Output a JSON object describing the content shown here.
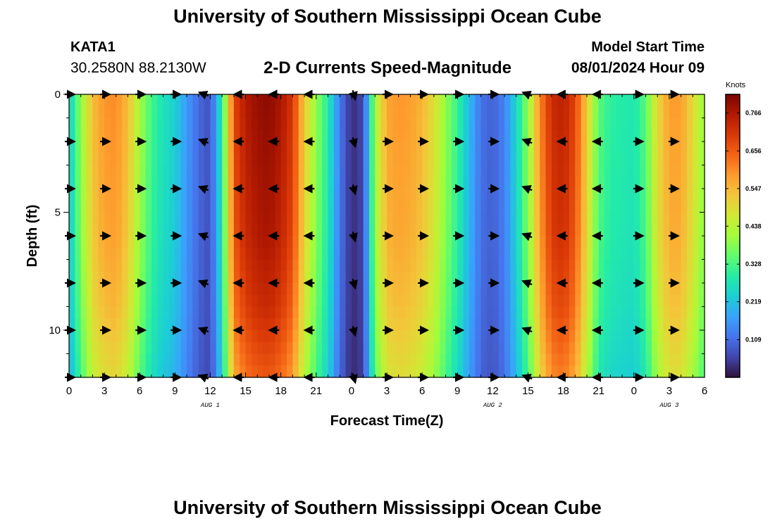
{
  "header": {
    "title": "University of Southern Mississippi Ocean Cube",
    "station_name": "KATA1",
    "station_coords": "30.2580N  88.2130W",
    "subtitle": "2-D Currents Speed-Magnitude",
    "start_label": "Model Start Time",
    "start_value": "08/01/2024 Hour 09"
  },
  "footer": {
    "title": "University of Southern Mississippi Ocean Cube"
  },
  "chart_data": {
    "type": "heatmap",
    "title": "2-D Currents Speed-Magnitude",
    "xlabel": "Forecast Time(Z)",
    "ylabel": "Depth (ft)",
    "x_range_hours": [
      0,
      54
    ],
    "x_ticks": [
      {
        "h": 0,
        "label": "0"
      },
      {
        "h": 3,
        "label": "3"
      },
      {
        "h": 6,
        "label": "6"
      },
      {
        "h": 9,
        "label": "9"
      },
      {
        "h": 12,
        "label": "12"
      },
      {
        "h": 15,
        "label": "15"
      },
      {
        "h": 18,
        "label": "18"
      },
      {
        "h": 21,
        "label": "21"
      },
      {
        "h": 24,
        "label": "0"
      },
      {
        "h": 27,
        "label": "3"
      },
      {
        "h": 30,
        "label": "6"
      },
      {
        "h": 33,
        "label": "9"
      },
      {
        "h": 36,
        "label": "12"
      },
      {
        "h": 39,
        "label": "15"
      },
      {
        "h": 42,
        "label": "18"
      },
      {
        "h": 45,
        "label": "21"
      },
      {
        "h": 48,
        "label": "0"
      },
      {
        "h": 51,
        "label": "3"
      },
      {
        "h": 54,
        "label": "6"
      }
    ],
    "date_labels": [
      {
        "h": 12,
        "label": "AUG 1"
      },
      {
        "h": 36,
        "label": "AUG 2"
      },
      {
        "h": 51,
        "label": "AUG 3"
      }
    ],
    "y_range_ft": [
      0,
      12
    ],
    "y_ticks": [
      {
        "v": 0,
        "label": "0"
      },
      {
        "v": 5,
        "label": "5"
      },
      {
        "v": 10,
        "label": "10"
      }
    ],
    "colorbar": {
      "units": "Knots",
      "min": 0,
      "max": 0.82,
      "tick_values": [
        0.109,
        0.219,
        0.328,
        0.438,
        0.547,
        0.656,
        0.766
      ],
      "tick_labels": [
        "0.109",
        "0.219",
        "0.328",
        "0.438",
        "0.547",
        "0.656",
        "0.766"
      ],
      "colors": [
        "#30123b",
        "#4145ab",
        "#4675ed",
        "#39a2fc",
        "#1bcfd4",
        "#24eca6",
        "#61fc6c",
        "#a4fc3b",
        "#d1e834",
        "#f3c63a",
        "#fe9b2d",
        "#f36315",
        "#d93806",
        "#b11901",
        "#7a0402"
      ]
    },
    "speed_profile": [
      {
        "h": 0,
        "speed": 0.22
      },
      {
        "h": 1,
        "speed": 0.38
      },
      {
        "h": 2,
        "speed": 0.52
      },
      {
        "h": 3,
        "speed": 0.57
      },
      {
        "h": 4,
        "speed": 0.58
      },
      {
        "h": 5,
        "speed": 0.52
      },
      {
        "h": 6,
        "speed": 0.4
      },
      {
        "h": 7,
        "speed": 0.31
      },
      {
        "h": 8,
        "speed": 0.26
      },
      {
        "h": 9,
        "speed": 0.23
      },
      {
        "h": 10,
        "speed": 0.16
      },
      {
        "h": 11,
        "speed": 0.1
      },
      {
        "h": 12,
        "speed": 0.07
      },
      {
        "h": 13,
        "speed": 0.28
      },
      {
        "h": 14,
        "speed": 0.66
      },
      {
        "h": 15,
        "speed": 0.73
      },
      {
        "h": 16,
        "speed": 0.76
      },
      {
        "h": 17,
        "speed": 0.77
      },
      {
        "h": 18,
        "speed": 0.74
      },
      {
        "h": 19,
        "speed": 0.68
      },
      {
        "h": 20,
        "speed": 0.5
      },
      {
        "h": 21,
        "speed": 0.38
      },
      {
        "h": 22,
        "speed": 0.28
      },
      {
        "h": 23,
        "speed": 0.12
      },
      {
        "h": 24,
        "speed": 0.03
      },
      {
        "h": 25,
        "speed": 0.06
      },
      {
        "h": 26,
        "speed": 0.4
      },
      {
        "h": 27,
        "speed": 0.55
      },
      {
        "h": 28,
        "speed": 0.57
      },
      {
        "h": 29,
        "speed": 0.56
      },
      {
        "h": 30,
        "speed": 0.53
      },
      {
        "h": 31,
        "speed": 0.47
      },
      {
        "h": 32,
        "speed": 0.38
      },
      {
        "h": 33,
        "speed": 0.3
      },
      {
        "h": 34,
        "speed": 0.2
      },
      {
        "h": 35,
        "speed": 0.11
      },
      {
        "h": 36,
        "speed": 0.09
      },
      {
        "h": 37,
        "speed": 0.13
      },
      {
        "h": 38,
        "speed": 0.24
      },
      {
        "h": 39,
        "speed": 0.38
      },
      {
        "h": 40,
        "speed": 0.58
      },
      {
        "h": 41,
        "speed": 0.7
      },
      {
        "h": 42,
        "speed": 0.72
      },
      {
        "h": 43,
        "speed": 0.66
      },
      {
        "h": 44,
        "speed": 0.5
      },
      {
        "h": 45,
        "speed": 0.33
      },
      {
        "h": 46,
        "speed": 0.29
      },
      {
        "h": 47,
        "speed": 0.28
      },
      {
        "h": 48,
        "speed": 0.27
      },
      {
        "h": 49,
        "speed": 0.33
      },
      {
        "h": 50,
        "speed": 0.48
      },
      {
        "h": 51,
        "speed": 0.56
      },
      {
        "h": 52,
        "speed": 0.56
      },
      {
        "h": 53,
        "speed": 0.48
      },
      {
        "h": 54,
        "speed": 0.38
      }
    ],
    "depth_weight": [
      {
        "ft": 0,
        "factor": 1.04
      },
      {
        "ft": 3,
        "factor": 1.02
      },
      {
        "ft": 6,
        "factor": 1.0
      },
      {
        "ft": 9,
        "factor": 0.95
      },
      {
        "ft": 12,
        "factor": 0.86
      }
    ],
    "vectors": {
      "depths_ft": [
        0,
        2,
        4,
        6,
        8,
        10,
        12
      ],
      "times": [
        {
          "h": 0,
          "dir": "E"
        },
        {
          "h": 3,
          "dir": "E"
        },
        {
          "h": 6,
          "dir": "E"
        },
        {
          "h": 9,
          "dir": "E"
        },
        {
          "h": 11.5,
          "dir": "WSW"
        },
        {
          "h": 14.5,
          "dir": "W"
        },
        {
          "h": 17.5,
          "dir": "W"
        },
        {
          "h": 20.5,
          "dir": "W"
        },
        {
          "h": 24.2,
          "dir": "S"
        },
        {
          "h": 27,
          "dir": "E"
        },
        {
          "h": 30,
          "dir": "E"
        },
        {
          "h": 33,
          "dir": "E"
        },
        {
          "h": 36,
          "dir": "E"
        },
        {
          "h": 39,
          "dir": "WSW"
        },
        {
          "h": 42,
          "dir": "W"
        },
        {
          "h": 45,
          "dir": "W"
        },
        {
          "h": 48.3,
          "dir": "E"
        },
        {
          "h": 51.3,
          "dir": "E"
        }
      ]
    }
  }
}
